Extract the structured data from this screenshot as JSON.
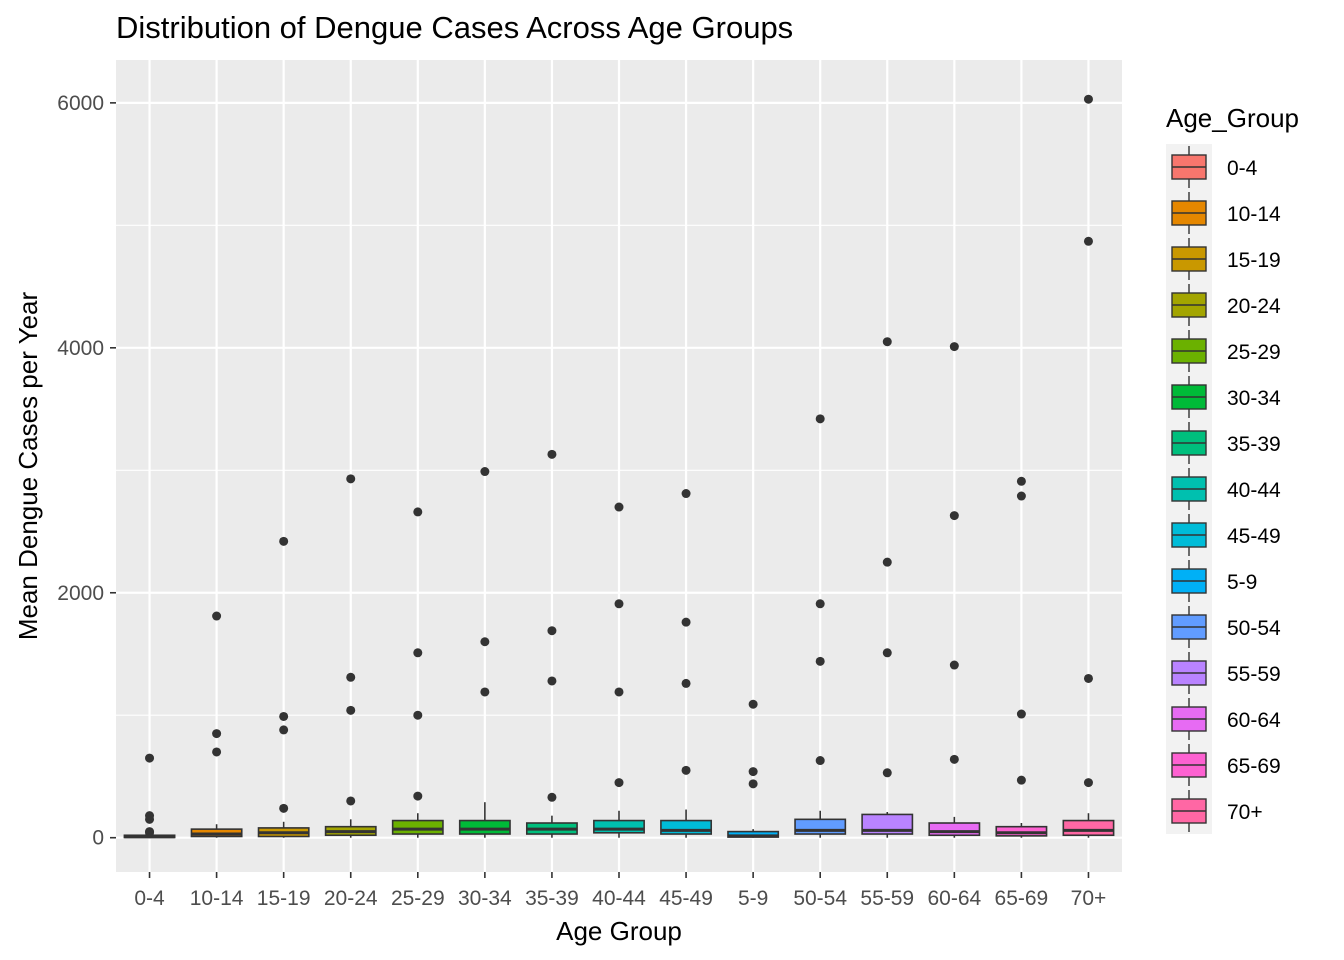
{
  "chart_data": {
    "type": "boxplot",
    "title": "Distribution of Dengue Cases Across Age Groups",
    "xlabel": "Age Group",
    "ylabel": "Mean Dengue Cases per Year",
    "ylim": [
      -280,
      6350
    ],
    "yticks": [
      0,
      2000,
      4000,
      6000
    ],
    "grid": true,
    "legend": {
      "title": "Age_Group",
      "placement": "right"
    },
    "categories": [
      "0-4",
      "10-14",
      "15-19",
      "20-24",
      "25-29",
      "30-34",
      "35-39",
      "40-44",
      "45-49",
      "5-9",
      "50-54",
      "55-59",
      "60-64",
      "65-69",
      "70+"
    ],
    "colors": [
      "#F8766D",
      "#E58700",
      "#C99800",
      "#A3A500",
      "#6BB100",
      "#00BA38",
      "#00BF7D",
      "#00C0AF",
      "#00BCD8",
      "#00B0F6",
      "#619CFF",
      "#B983FF",
      "#E76BF3",
      "#FD61D1",
      "#FF67A4"
    ],
    "boxes": [
      {
        "min": 0,
        "q1": 2,
        "median": 8,
        "q3": 20,
        "max": 30,
        "outliers": [
          40,
          50,
          150,
          180,
          650
        ]
      },
      {
        "min": 0,
        "q1": 10,
        "median": 30,
        "q3": 70,
        "max": 110,
        "outliers": [
          700,
          850,
          1810
        ]
      },
      {
        "min": 0,
        "q1": 10,
        "median": 40,
        "q3": 80,
        "max": 130,
        "outliers": [
          240,
          880,
          990,
          2420
        ]
      },
      {
        "min": 0,
        "q1": 20,
        "median": 50,
        "q3": 90,
        "max": 150,
        "outliers": [
          300,
          1040,
          1310,
          2930
        ]
      },
      {
        "min": 0,
        "q1": 30,
        "median": 70,
        "q3": 140,
        "max": 200,
        "outliers": [
          340,
          1000,
          1510,
          2660
        ]
      },
      {
        "min": 0,
        "q1": 30,
        "median": 70,
        "q3": 140,
        "max": 290,
        "outliers": [
          1190,
          1600,
          2990
        ]
      },
      {
        "min": 0,
        "q1": 30,
        "median": 70,
        "q3": 120,
        "max": 180,
        "outliers": [
          330,
          1280,
          1690,
          3130
        ]
      },
      {
        "min": 0,
        "q1": 40,
        "median": 70,
        "q3": 140,
        "max": 220,
        "outliers": [
          450,
          1190,
          1910,
          2700
        ]
      },
      {
        "min": 0,
        "q1": 30,
        "median": 60,
        "q3": 140,
        "max": 230,
        "outliers": [
          550,
          1260,
          1760,
          2810
        ]
      },
      {
        "min": 0,
        "q1": 5,
        "median": 15,
        "q3": 50,
        "max": 70,
        "outliers": [
          440,
          540,
          1090
        ]
      },
      {
        "min": 0,
        "q1": 30,
        "median": 60,
        "q3": 150,
        "max": 220,
        "outliers": [
          630,
          1440,
          1910,
          3420
        ]
      },
      {
        "min": 0,
        "q1": 30,
        "median": 60,
        "q3": 190,
        "max": 210,
        "outliers": [
          530,
          1510,
          2250,
          4050
        ]
      },
      {
        "min": 0,
        "q1": 20,
        "median": 50,
        "q3": 120,
        "max": 170,
        "outliers": [
          640,
          1410,
          2630,
          4010
        ]
      },
      {
        "min": 0,
        "q1": 15,
        "median": 40,
        "q3": 90,
        "max": 120,
        "outliers": [
          470,
          1010,
          2790,
          2910
        ]
      },
      {
        "min": 0,
        "q1": 20,
        "median": 60,
        "q3": 140,
        "max": 200,
        "outliers": [
          450,
          1300,
          4870,
          6030
        ]
      }
    ]
  }
}
